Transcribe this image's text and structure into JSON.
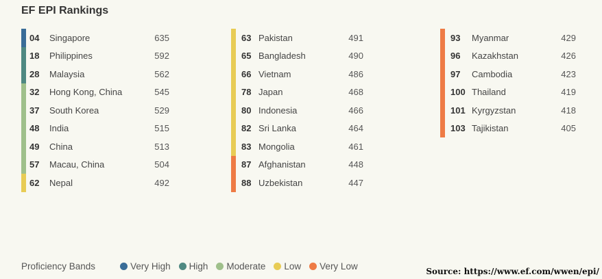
{
  "chart_data": {
    "type": "table",
    "title": "EF EPI Rankings",
    "columns": [
      [
        {
          "rank": "04",
          "country": "Singapore",
          "score": 635,
          "band": "Very High"
        },
        {
          "rank": "18",
          "country": "Philippines",
          "score": 592,
          "band": "High"
        },
        {
          "rank": "28",
          "country": "Malaysia",
          "score": 562,
          "band": "High"
        },
        {
          "rank": "32",
          "country": "Hong Kong, China",
          "score": 545,
          "band": "Moderate"
        },
        {
          "rank": "37",
          "country": "South Korea",
          "score": 529,
          "band": "Moderate"
        },
        {
          "rank": "48",
          "country": "India",
          "score": 515,
          "band": "Moderate"
        },
        {
          "rank": "49",
          "country": "China",
          "score": 513,
          "band": "Moderate"
        },
        {
          "rank": "57",
          "country": "Macau, China",
          "score": 504,
          "band": "Moderate"
        },
        {
          "rank": "62",
          "country": "Nepal",
          "score": 492,
          "band": "Low"
        }
      ],
      [
        {
          "rank": "63",
          "country": "Pakistan",
          "score": 491,
          "band": "Low"
        },
        {
          "rank": "65",
          "country": "Bangladesh",
          "score": 490,
          "band": "Low"
        },
        {
          "rank": "66",
          "country": "Vietnam",
          "score": 486,
          "band": "Low"
        },
        {
          "rank": "78",
          "country": "Japan",
          "score": 468,
          "band": "Low"
        },
        {
          "rank": "80",
          "country": "Indonesia",
          "score": 466,
          "band": "Low"
        },
        {
          "rank": "82",
          "country": "Sri Lanka",
          "score": 464,
          "band": "Low"
        },
        {
          "rank": "83",
          "country": "Mongolia",
          "score": 461,
          "band": "Low"
        },
        {
          "rank": "87",
          "country": "Afghanistan",
          "score": 448,
          "band": "Very Low"
        },
        {
          "rank": "88",
          "country": "Uzbekistan",
          "score": 447,
          "band": "Very Low"
        }
      ],
      [
        {
          "rank": "93",
          "country": "Myanmar",
          "score": 429,
          "band": "Very Low"
        },
        {
          "rank": "96",
          "country": "Kazakhstan",
          "score": 426,
          "band": "Very Low"
        },
        {
          "rank": "97",
          "country": "Cambodia",
          "score": 423,
          "band": "Very Low"
        },
        {
          "rank": "100",
          "country": "Thailand",
          "score": 419,
          "band": "Very Low"
        },
        {
          "rank": "101",
          "country": "Kyrgyzstan",
          "score": 418,
          "band": "Very Low"
        },
        {
          "rank": "103",
          "country": "Tajikistan",
          "score": 405,
          "band": "Very Low"
        }
      ]
    ],
    "legend": {
      "title": "Proficiency Bands",
      "bands": [
        {
          "name": "Very High",
          "color": "#3a6d98"
        },
        {
          "name": "High",
          "color": "#4f8982"
        },
        {
          "name": "Moderate",
          "color": "#9fc08b"
        },
        {
          "name": "Low",
          "color": "#e8cc55"
        },
        {
          "name": "Very Low",
          "color": "#ee7b45"
        }
      ]
    },
    "source": "Source: https://www.ef.com/wwen/epi/"
  }
}
